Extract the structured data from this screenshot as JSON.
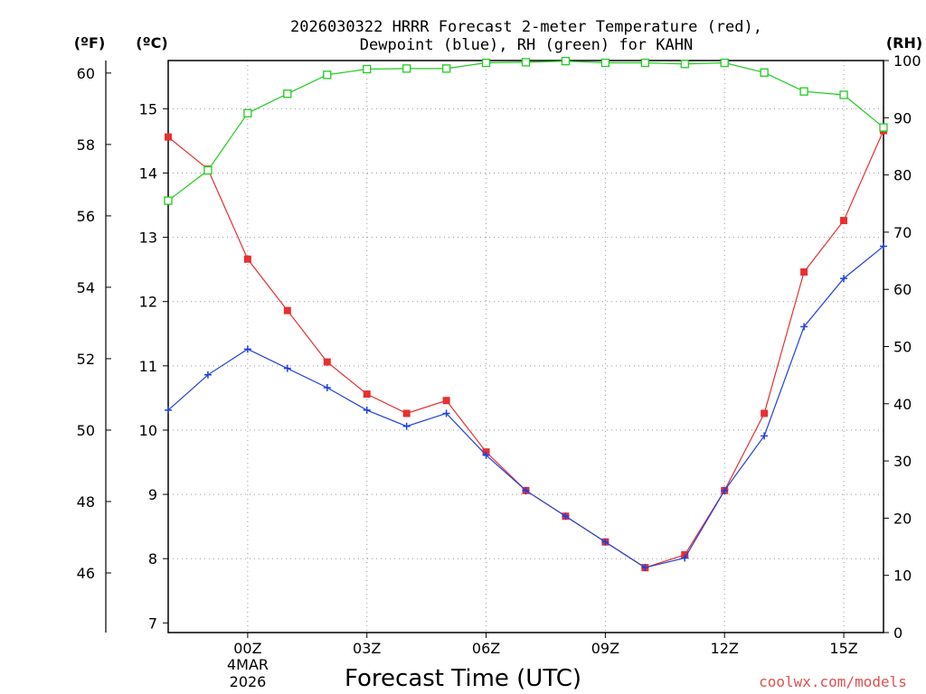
{
  "chart_data": {
    "type": "line",
    "title_line1": "2026030322 HRRR Forecast 2-meter Temperature (red),",
    "title_line2": "Dewpoint (blue), RH (green) for KAHN",
    "xlabel": "Forecast Time (UTC)",
    "credit": "coolwx.com/models",
    "units": {
      "fahrenheit": "(ºF)",
      "celsius": "(ºC)",
      "rh": "(RH)"
    },
    "x_ticks": [
      "00Z",
      "03Z",
      "06Z",
      "09Z",
      "12Z",
      "15Z"
    ],
    "x_tick_hours": [
      0,
      3,
      6,
      9,
      12,
      15
    ],
    "date_line1": "4MAR",
    "date_line2": "2026",
    "xlim": [
      -2,
      16
    ],
    "celsius_ticks": [
      "7",
      "8",
      "9",
      "10",
      "11",
      "12",
      "13",
      "14",
      "15"
    ],
    "celsius_lim": [
      6.85,
      15.75
    ],
    "fahrenheit_ticks": [
      "46",
      "48",
      "50",
      "52",
      "54",
      "56",
      "58",
      "60"
    ],
    "rh_ticks": [
      "0",
      "10",
      "20",
      "30",
      "40",
      "50",
      "60",
      "70",
      "80",
      "90",
      "100"
    ],
    "rh_lim": [
      0,
      100
    ],
    "x": [
      -2,
      -1,
      0,
      1,
      2,
      3,
      4,
      5,
      6,
      7,
      8,
      9,
      10,
      11,
      12,
      13,
      14,
      15,
      16
    ],
    "series": [
      {
        "name": "Temperature",
        "unit": "C",
        "color": "#e83030",
        "marker": "filled-square",
        "values": [
          14.56,
          14.06,
          12.66,
          11.86,
          11.06,
          10.56,
          10.26,
          10.46,
          9.66,
          9.06,
          8.66,
          8.26,
          7.86,
          8.06,
          9.06,
          10.26,
          12.46,
          13.26,
          14.66
        ]
      },
      {
        "name": "Dewpoint",
        "unit": "C",
        "color": "#2040e0",
        "marker": "plus",
        "values": [
          10.31,
          10.86,
          11.26,
          10.96,
          10.66,
          10.31,
          10.06,
          10.26,
          9.61,
          9.06,
          8.66,
          8.26,
          7.86,
          8.01,
          9.06,
          9.91,
          11.61,
          12.36,
          12.86
        ]
      },
      {
        "name": "RH",
        "unit": "%",
        "color": "#20cc20",
        "marker": "open-square",
        "values": [
          75.5,
          80.8,
          90.8,
          94.2,
          97.5,
          98.5,
          98.6,
          98.6,
          99.6,
          99.7,
          99.9,
          99.6,
          99.6,
          99.4,
          99.6,
          97.9,
          94.6,
          94.0,
          88.3
        ]
      }
    ]
  }
}
